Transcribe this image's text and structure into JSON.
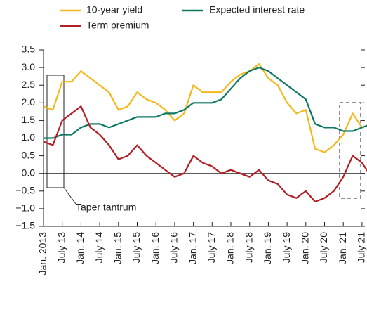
{
  "chart_data": {
    "type": "line",
    "categories": [
      "Jan. 2013",
      null,
      "July 13",
      null,
      "Jan. 14",
      null,
      "July 14",
      null,
      "Jan. 15",
      null,
      "July 15",
      null,
      "Jan. 16",
      null,
      "July 16",
      null,
      "Jan. 17",
      null,
      "July 17",
      null,
      "Jan. 18",
      null,
      "July 18",
      null,
      "Jan. 19",
      null,
      "July 19",
      null,
      "Jan. 20",
      null,
      "July 20",
      null,
      "Jan. 21",
      null,
      "July 21",
      null
    ],
    "series": [
      {
        "name": "10-year yield",
        "color": "#f5b81c",
        "values": [
          1.9,
          1.8,
          2.6,
          2.6,
          2.9,
          2.7,
          2.5,
          2.3,
          1.8,
          1.9,
          2.3,
          2.1,
          2.0,
          1.8,
          1.5,
          1.7,
          2.5,
          2.3,
          2.3,
          2.3,
          2.6,
          2.8,
          2.9,
          3.1,
          2.7,
          2.5,
          2.0,
          1.7,
          1.8,
          0.7,
          0.6,
          0.8,
          1.1,
          1.7,
          1.3,
          1.4
        ]
      },
      {
        "name": "Expected interest rate",
        "color": "#0e7763",
        "values": [
          1.0,
          1.0,
          1.1,
          1.1,
          1.3,
          1.4,
          1.4,
          1.3,
          1.4,
          1.5,
          1.6,
          1.6,
          1.6,
          1.7,
          1.7,
          1.8,
          2.0,
          2.0,
          2.0,
          2.1,
          2.4,
          2.7,
          2.9,
          3.0,
          2.9,
          2.7,
          2.5,
          2.3,
          2.1,
          1.4,
          1.3,
          1.3,
          1.2,
          1.2,
          1.3,
          1.4
        ]
      },
      {
        "name": "Term premium",
        "color": "#b11f24",
        "values": [
          0.9,
          0.8,
          1.5,
          1.7,
          1.9,
          1.3,
          1.1,
          0.8,
          0.4,
          0.5,
          0.8,
          0.5,
          0.3,
          0.1,
          -0.1,
          0.0,
          0.5,
          0.3,
          0.2,
          0.0,
          0.1,
          0.0,
          -0.1,
          0.1,
          -0.2,
          -0.3,
          -0.6,
          -0.7,
          -0.5,
          -0.8,
          -0.7,
          -0.5,
          -0.1,
          0.5,
          0.3,
          -0.1
        ]
      }
    ],
    "ylim": [
      -1.5,
      3.5
    ],
    "yticks": [
      3.5,
      {
        "value": 3,
        "label": "3.0"
      },
      2.5,
      {
        "value": 2,
        "label": "2.0"
      },
      1.5,
      {
        "value": 1,
        "label": "1.0"
      },
      0.5,
      {
        "value": 0,
        "label": "0.0"
      },
      {
        "value": -0.5,
        "label": "−0.5"
      },
      {
        "value": -1,
        "label": "−1.0"
      },
      {
        "value": -1.5,
        "label": "−1.5"
      }
    ],
    "annotation": "Taper tantrum",
    "grid": false
  }
}
